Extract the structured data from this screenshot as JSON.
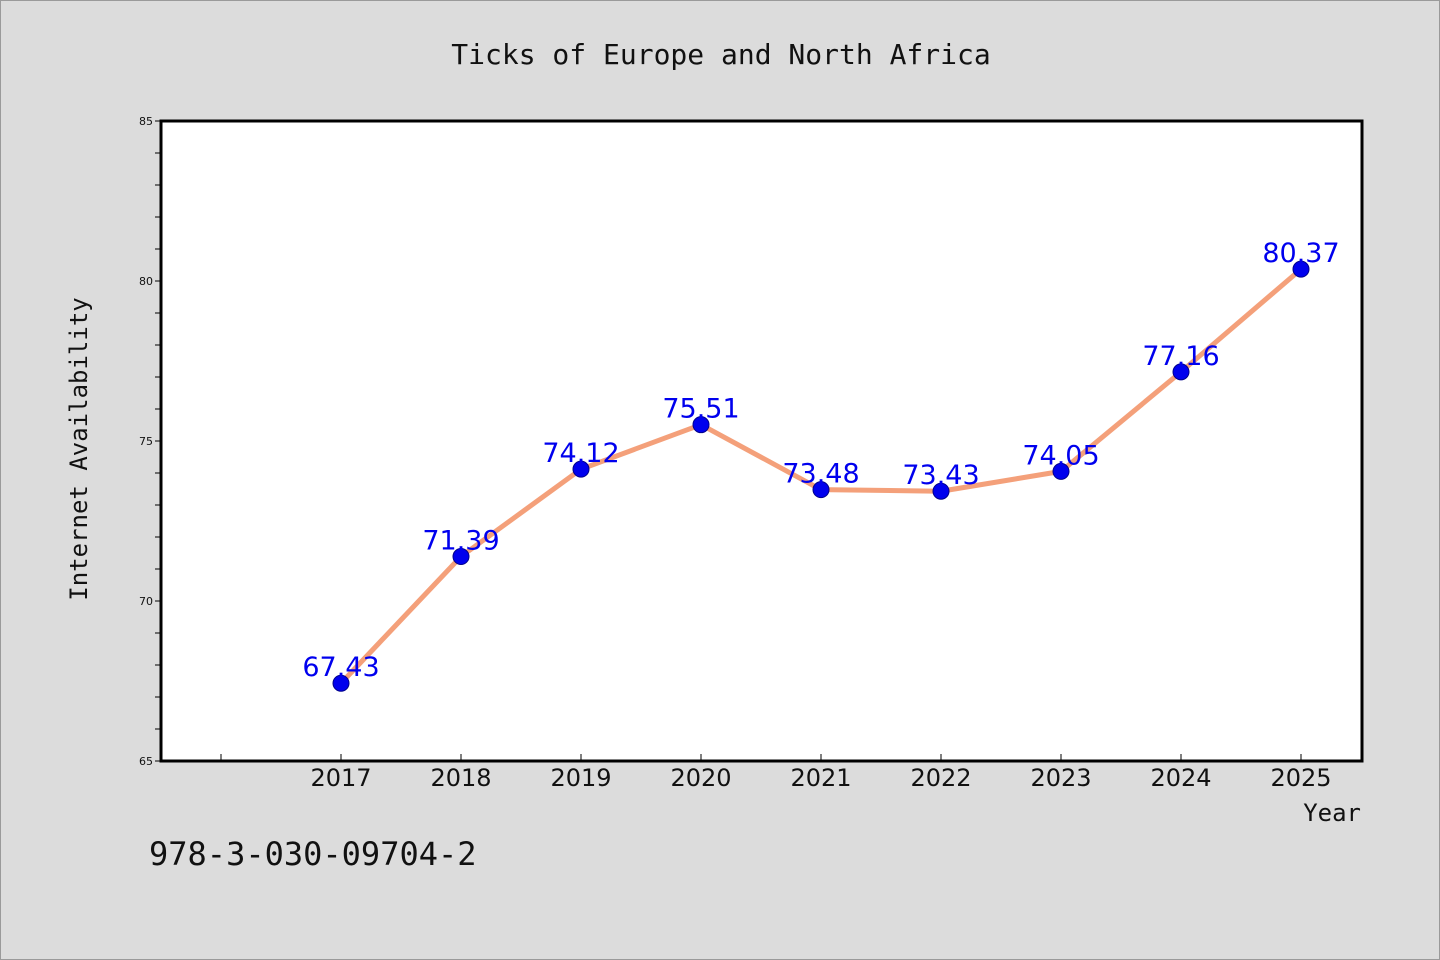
{
  "chart_data": {
    "type": "line",
    "title": "Ticks of Europe and North Africa",
    "xlabel": "Year",
    "ylabel": "Internet Availability",
    "categories": [
      "2017",
      "2018",
      "2019",
      "2020",
      "2021",
      "2022",
      "2023",
      "2024",
      "2025"
    ],
    "values": [
      67.43,
      71.39,
      74.12,
      75.51,
      73.48,
      73.43,
      74.05,
      77.16,
      80.37
    ],
    "data_labels": [
      "67.43",
      "71.39",
      "74.12",
      "75.51",
      "73.48",
      "73.43",
      "74.05",
      "77.16",
      "80.37"
    ],
    "ylim": [
      65,
      85
    ],
    "y_ticks": [
      "65",
      "70",
      "75",
      "80",
      "85"
    ],
    "grid": false,
    "legend": "none",
    "colors": {
      "line": "#f4a07a",
      "marker": "#0000ee",
      "data_label": "#0000ee",
      "plot_background": "#ffffff",
      "page_background": "#dcdcdc"
    }
  },
  "footer": {
    "identifier": "978-3-030-09704-2"
  }
}
